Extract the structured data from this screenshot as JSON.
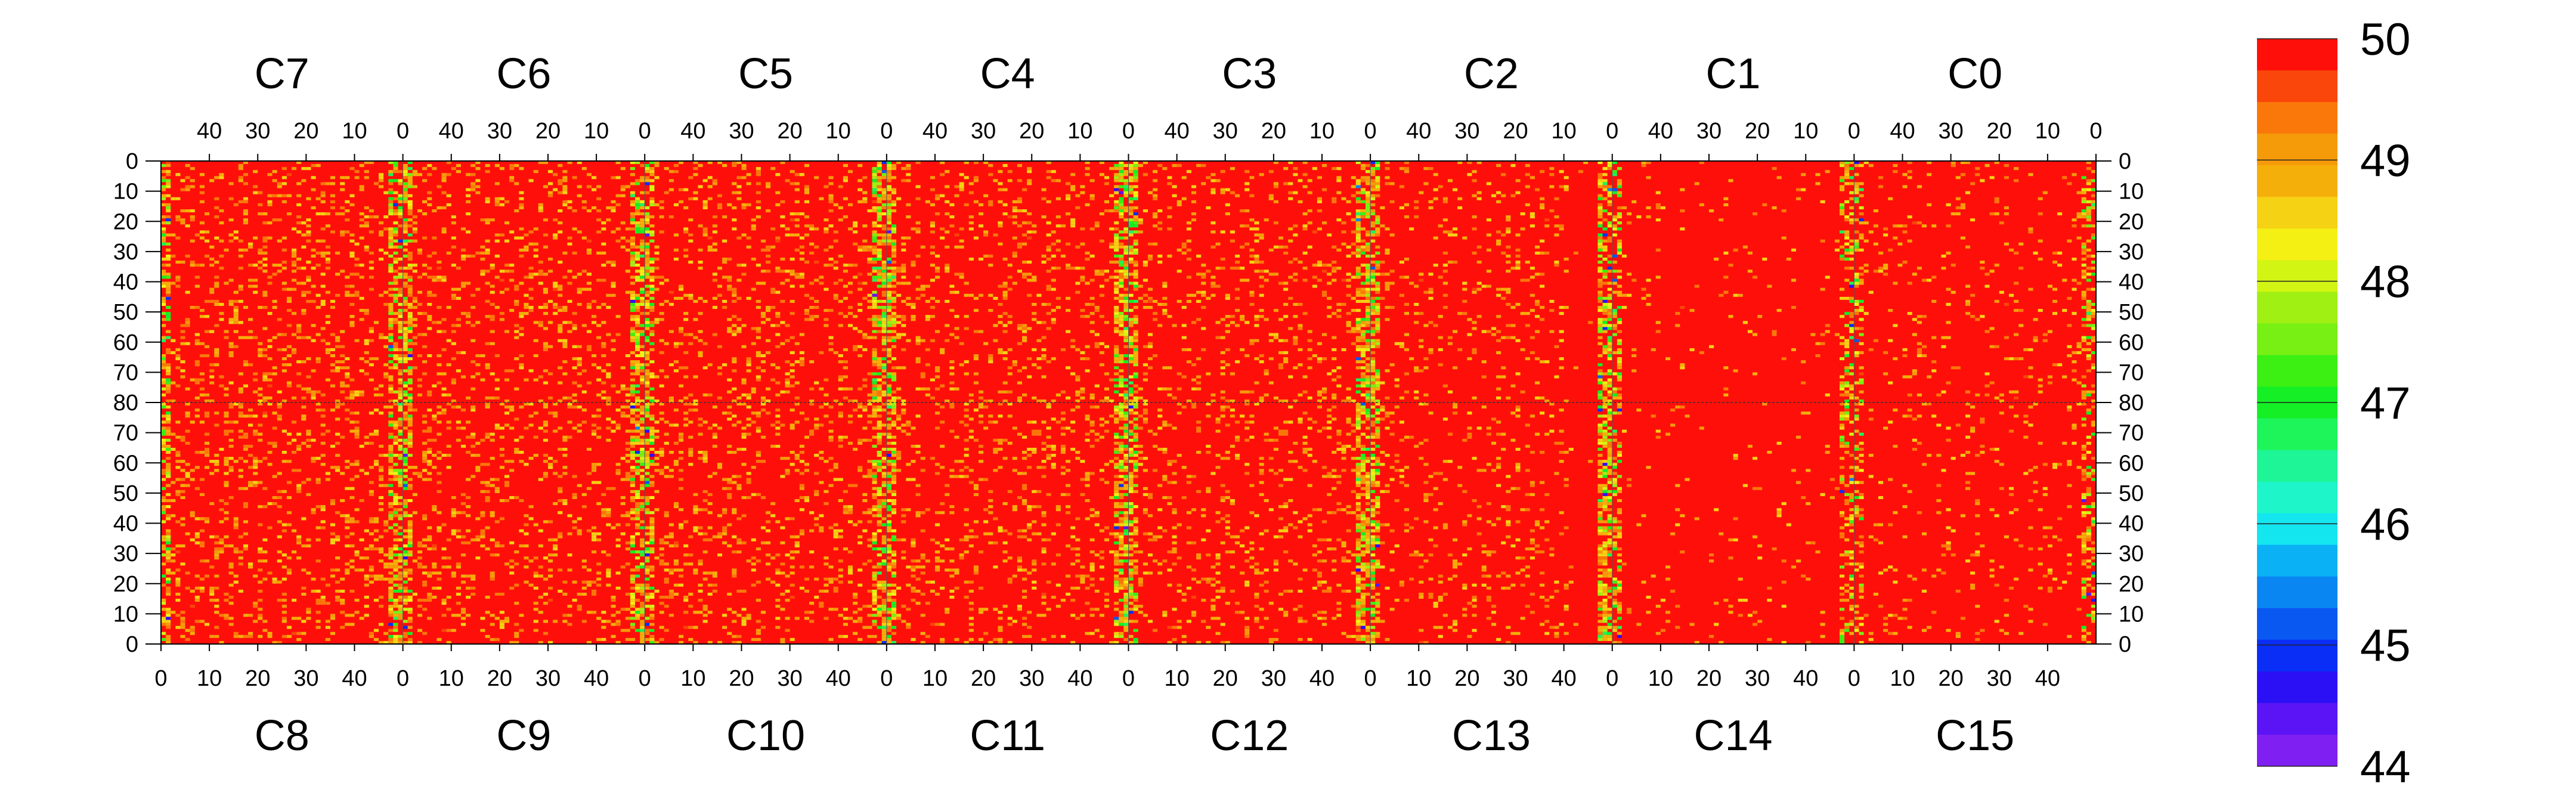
{
  "chart_data": {
    "type": "heatmap",
    "top_labels": [
      "C7",
      "C6",
      "C5",
      "C4",
      "C3",
      "C2",
      "C1",
      "C0"
    ],
    "bottom_labels": [
      "C8",
      "C9",
      "C10",
      "C11",
      "C12",
      "C13",
      "C14",
      "C15"
    ],
    "top_ticks": [
      "40",
      "30",
      "20",
      "10",
      "0"
    ],
    "bottom_ticks": [
      "0",
      "10",
      "20",
      "30",
      "40"
    ],
    "y_ticks_top_half": [
      "0",
      "10",
      "20",
      "30",
      "40",
      "50",
      "60",
      "70",
      "80"
    ],
    "y_ticks_bottom_half": [
      "70",
      "60",
      "50",
      "40",
      "30",
      "20",
      "10",
      "0"
    ],
    "columns_per_panel": 50,
    "rows_per_half": 80,
    "colorbar": {
      "min": 44,
      "max": 50,
      "tick_labels": [
        "50",
        "49",
        "48",
        "47",
        "46",
        "45",
        "44"
      ],
      "colors": [
        "#7f1ff2",
        "#5a14f5",
        "#2b10f5",
        "#0a2ef5",
        "#0a58f2",
        "#0a86f2",
        "#0ab1f5",
        "#14e6f0",
        "#1ef5c8",
        "#1ef596",
        "#1ef55a",
        "#14f025",
        "#3cf014",
        "#78f014",
        "#a0f014",
        "#d2f514",
        "#f5f014",
        "#f5d214",
        "#f5af0a",
        "#f59b0a",
        "#fa780a",
        "#fa460a",
        "#ff0f0a"
      ]
    },
    "base_value": 50,
    "notes": "Per-pixel readings, mostly saturated at 50, with scattered lower values concentrated near the panel boundaries; left panels noisier than right panels."
  }
}
